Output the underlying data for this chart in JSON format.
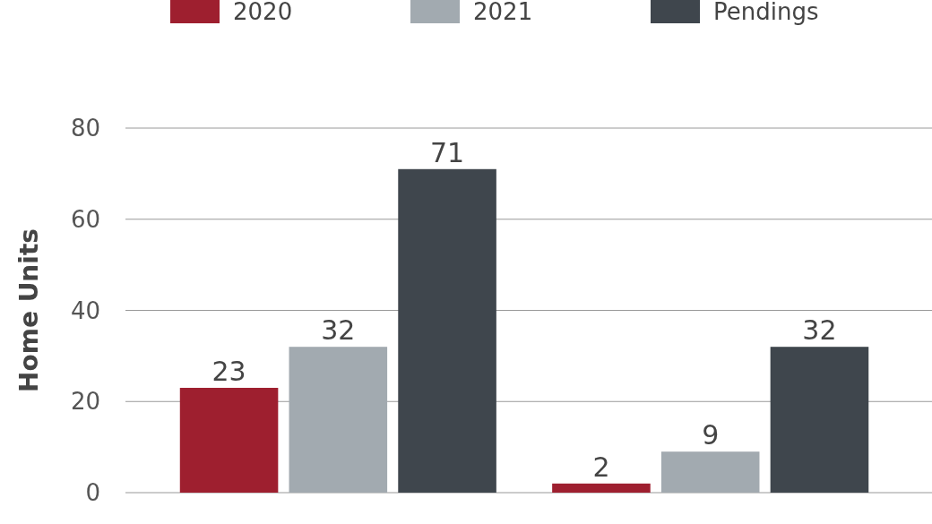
{
  "chart_data": {
    "type": "bar",
    "ylabel": "Home Units",
    "categories": [
      null,
      null
    ],
    "series": [
      {
        "name": "2020",
        "color": "#9e1f2f",
        "values": [
          23,
          2
        ]
      },
      {
        "name": "2021",
        "color": "#a2aab0",
        "values": [
          32,
          9
        ]
      },
      {
        "name": "Pendings",
        "color": "#3f464d",
        "values": [
          71,
          32
        ]
      }
    ],
    "ylim": [
      0,
      80
    ],
    "yticks": [
      0,
      20,
      40,
      60,
      80
    ],
    "grid": "y",
    "legend": "top",
    "data_labels": true
  }
}
